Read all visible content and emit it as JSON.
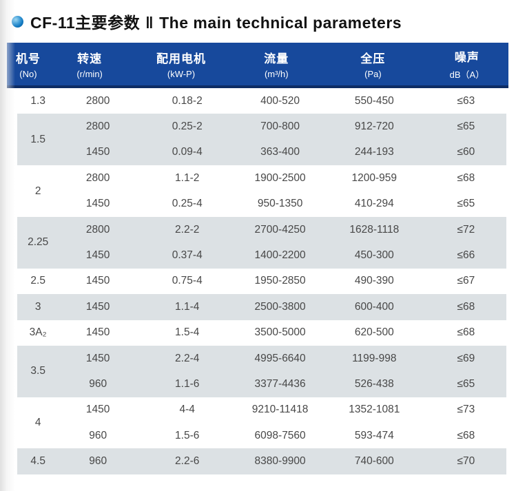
{
  "title": {
    "cn": "CF-11主要参数",
    "separator": "‖",
    "en": "The main technical parameters"
  },
  "table": {
    "headers": [
      {
        "cn": "机号",
        "sub": "(No)"
      },
      {
        "cn": "转速",
        "sub": "(r/min)"
      },
      {
        "cn": "配用电机",
        "sub": "(kW-P)"
      },
      {
        "cn": "流量",
        "sub": "(m³/h)"
      },
      {
        "cn": "全压",
        "sub": "(Pa)"
      },
      {
        "cn": "噪声",
        "sub": "dB（A）"
      }
    ],
    "groups": [
      {
        "no": "1.3",
        "shade": "white",
        "rows": [
          [
            "2800",
            "0.18-2",
            "400-520",
            "550-450",
            "≤63"
          ]
        ]
      },
      {
        "no": "1.5",
        "shade": "gray",
        "rows": [
          [
            "2800",
            "0.25-2",
            "700-800",
            "912-720",
            "≤65"
          ],
          [
            "1450",
            "0.09-4",
            "363-400",
            "244-193",
            "≤60"
          ]
        ]
      },
      {
        "no": "2",
        "shade": "white",
        "rows": [
          [
            "2800",
            "1.1-2",
            "1900-2500",
            "1200-959",
            "≤68"
          ],
          [
            "1450",
            "0.25-4",
            "950-1350",
            "410-294",
            "≤65"
          ]
        ]
      },
      {
        "no": "2.25",
        "shade": "gray",
        "rows": [
          [
            "2800",
            "2.2-2",
            "2700-4250",
            "1628-1118",
            "≤72"
          ],
          [
            "1450",
            "0.37-4",
            "1400-2200",
            "450-300",
            "≤66"
          ]
        ]
      },
      {
        "no": "2.5",
        "shade": "white",
        "rows": [
          [
            "1450",
            "0.75-4",
            "1950-2850",
            "490-390",
            "≤67"
          ]
        ]
      },
      {
        "no": "3",
        "shade": "gray",
        "rows": [
          [
            "1450",
            "1.1-4",
            "2500-3800",
            "600-400",
            "≤68"
          ]
        ]
      },
      {
        "no": "3A₂",
        "shade": "white",
        "rows": [
          [
            "1450",
            "1.5-4",
            "3500-5000",
            "620-500",
            "≤68"
          ]
        ]
      },
      {
        "no": "3.5",
        "shade": "gray",
        "rows": [
          [
            "1450",
            "2.2-4",
            "4995-6640",
            "1199-998",
            "≤69"
          ],
          [
            "960",
            "1.1-6",
            "3377-4436",
            "526-438",
            "≤65"
          ]
        ]
      },
      {
        "no": "4",
        "shade": "white",
        "rows": [
          [
            "1450",
            "4-4",
            "9210-11418",
            "1352-1081",
            "≤73"
          ],
          [
            "960",
            "1.5-6",
            "6098-7560",
            "593-474",
            "≤68"
          ]
        ]
      },
      {
        "no": "4.5",
        "shade": "gray",
        "rows": [
          [
            "960",
            "2.2-6",
            "8380-9900",
            "740-600",
            "≤70"
          ]
        ]
      }
    ]
  },
  "colors": {
    "header_bg": "#17499c",
    "header_border": "#0d2c64",
    "row_gray": "#dce1e4",
    "row_white": "#ffffff",
    "cell_text": "#474747",
    "title_text": "#121212",
    "bullet_blue": "#1279c0"
  }
}
